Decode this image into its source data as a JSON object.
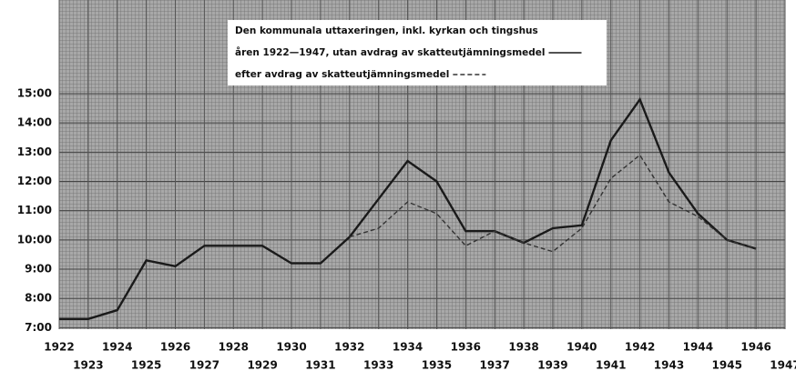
{
  "chart_data": {
    "type": "line",
    "title": "Den kommunala uttaxeringen, inkl. kyrkan och tingshus",
    "x": [
      1922,
      1923,
      1924,
      1925,
      1926,
      1927,
      1928,
      1929,
      1930,
      1931,
      1932,
      1933,
      1934,
      1935,
      1936,
      1937,
      1938,
      1939,
      1940,
      1941,
      1942,
      1943,
      1944,
      1945,
      1946
    ],
    "series": [
      {
        "name": "åren 1922—1947, utan avdrag av skatteutjämningsmedel",
        "color": "#1a1a1a",
        "style": "solid",
        "values": [
          7.3,
          7.3,
          7.6,
          9.3,
          9.1,
          9.8,
          9.8,
          9.8,
          9.2,
          9.2,
          10.1,
          11.4,
          12.7,
          12.0,
          10.3,
          10.3,
          9.9,
          10.4,
          10.5,
          13.4,
          14.8,
          12.3,
          10.9,
          10.0,
          9.7
        ]
      },
      {
        "name": "efter avdrag av skatteutjämningsmedel",
        "color": "#333333",
        "style": "dashed",
        "values": [
          null,
          null,
          null,
          null,
          null,
          null,
          null,
          null,
          null,
          null,
          10.1,
          10.4,
          11.3,
          10.9,
          9.8,
          10.3,
          9.9,
          9.6,
          10.4,
          12.1,
          12.9,
          11.3,
          10.8,
          10.0,
          9.7
        ]
      }
    ],
    "xlim": [
      1922,
      1947
    ],
    "xticks": [
      1922,
      1923,
      1924,
      1925,
      1926,
      1927,
      1928,
      1929,
      1930,
      1931,
      1932,
      1933,
      1934,
      1935,
      1936,
      1937,
      1938,
      1939,
      1940,
      1941,
      1942,
      1943,
      1944,
      1945,
      1946,
      1947
    ],
    "ylim": [
      6.95,
      18.2
    ],
    "yticks": [
      {
        "value": 7,
        "label": "7:00"
      },
      {
        "value": 8,
        "label": "8:00"
      },
      {
        "value": 9,
        "label": "9:00"
      },
      {
        "value": 10,
        "label": "10:00"
      },
      {
        "value": 11,
        "label": "11:00"
      },
      {
        "value": 12,
        "label": "12:00"
      },
      {
        "value": 13,
        "label": "13:00"
      },
      {
        "value": 14,
        "label": "14:00"
      },
      {
        "value": 15,
        "label": "15:00"
      }
    ],
    "grid": true
  }
}
